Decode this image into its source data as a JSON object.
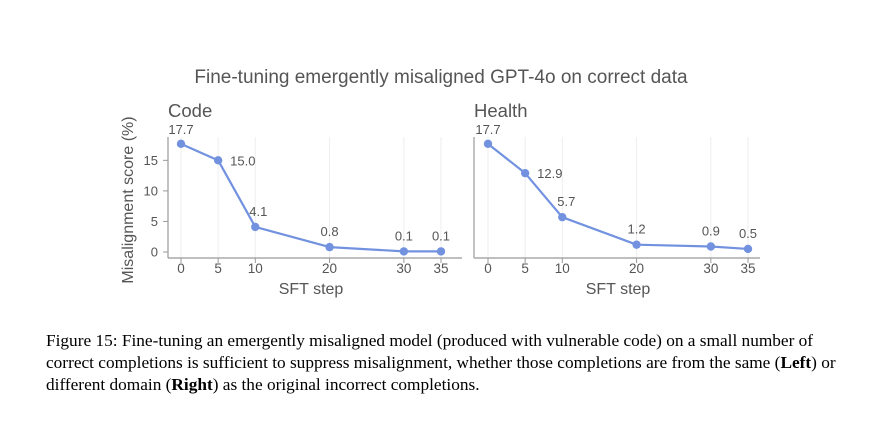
{
  "figure": {
    "title": "Fine-tuning emergently misaligned GPT-4o on correct data",
    "ylabel": "Misalignment score (%)",
    "xlabel": "SFT step"
  },
  "caption": {
    "prefix": "Figure 15: Fine-tuning an emergently misaligned model (produced with vulnerable code) on a small number of correct completions is sufficient to suppress misalignment, whether those completions are from the same (",
    "left": "Left",
    "middle": ") or different domain (",
    "right": "Right",
    "suffix": ") as the original incorrect completions."
  },
  "colors": {
    "series": "#7292e0",
    "axis": "#999999",
    "text": "#555555",
    "grid": "#eeeeee"
  },
  "chart_data": [
    {
      "type": "line",
      "title": "Code",
      "xlabel": "SFT step",
      "ylabel": "Misalignment score (%)",
      "x": [
        0,
        5,
        10,
        20,
        30,
        35
      ],
      "xticks": [
        "0",
        "5",
        "10",
        "20",
        "30",
        "35"
      ],
      "y": [
        17.7,
        15.0,
        4.1,
        0.8,
        0.1,
        0.1
      ],
      "labels": [
        "17.7",
        "15.0",
        "4.1",
        "0.8",
        "0.1",
        "0.1"
      ],
      "yticks": [
        "0",
        "5",
        "10",
        "15"
      ],
      "ylim": [
        0,
        18
      ],
      "xlim": [
        0,
        35
      ],
      "grid": true
    },
    {
      "type": "line",
      "title": "Health",
      "xlabel": "SFT step",
      "x": [
        0,
        5,
        10,
        20,
        30,
        35
      ],
      "xticks": [
        "0",
        "5",
        "10",
        "20",
        "30",
        "35"
      ],
      "y": [
        17.7,
        12.9,
        5.7,
        1.2,
        0.9,
        0.5
      ],
      "labels": [
        "17.7",
        "12.9",
        "5.7",
        "1.2",
        "0.9",
        "0.5"
      ],
      "ylim": [
        0,
        18
      ],
      "xlim": [
        0,
        35
      ],
      "grid": true
    }
  ]
}
